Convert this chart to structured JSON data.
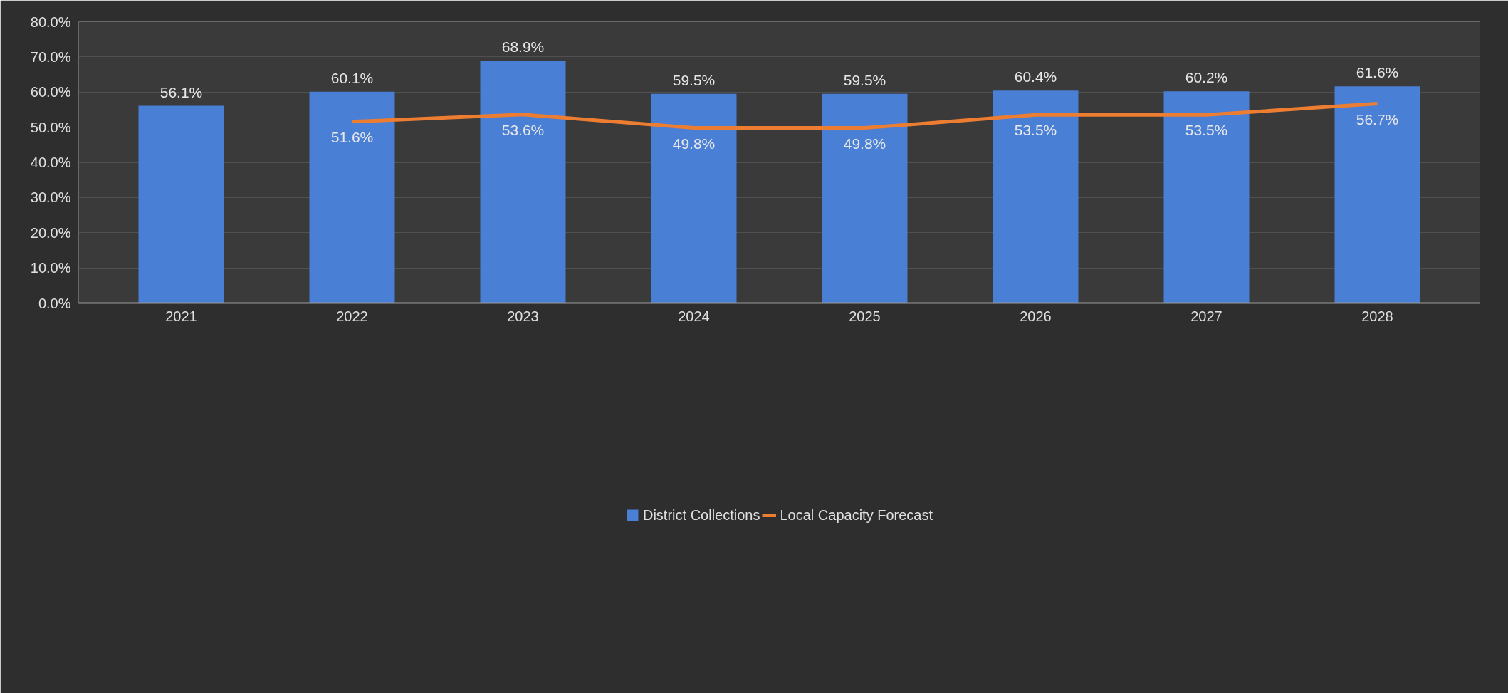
{
  "chart_data": {
    "type": "bar",
    "categories": [
      "2021",
      "2022",
      "2023",
      "2024",
      "2025",
      "2026",
      "2027",
      "2028"
    ],
    "series": [
      {
        "name": "District Collections",
        "color": "#4a7fd6",
        "values": [
          56.1,
          60.1,
          68.9,
          59.5,
          59.5,
          60.4,
          60.2,
          61.6
        ],
        "value_labels": [
          "56.1%",
          "60.1%",
          "68.9%",
          "59.5%",
          "59.5%",
          "60.4%",
          "60.2%",
          "61.6%"
        ]
      },
      {
        "name": "Local Capacity Forecast",
        "type": "line",
        "color": "#ed7d31",
        "values": [
          null,
          51.6,
          53.6,
          49.8,
          49.8,
          53.5,
          53.5,
          56.7
        ],
        "value_labels": [
          null,
          "51.6%",
          "53.6%",
          "49.8%",
          "49.8%",
          "53.5%",
          "53.5%",
          "56.7%"
        ]
      }
    ],
    "ylim": [
      0,
      80
    ],
    "yticks": [
      {
        "value": 0,
        "label": "0.0%"
      },
      {
        "value": 10,
        "label": "10.0%"
      },
      {
        "value": 20,
        "label": "20.0%"
      },
      {
        "value": 30,
        "label": "30.0%"
      },
      {
        "value": 40,
        "label": "40.0%"
      },
      {
        "value": 50,
        "label": "50.0%"
      },
      {
        "value": 60,
        "label": "60.0%"
      },
      {
        "value": 70,
        "label": "70.0%"
      },
      {
        "value": 80,
        "label": "80.0%"
      }
    ],
    "grid": "y",
    "legend": "bottom",
    "marker": "none",
    "line_style": "solid"
  }
}
